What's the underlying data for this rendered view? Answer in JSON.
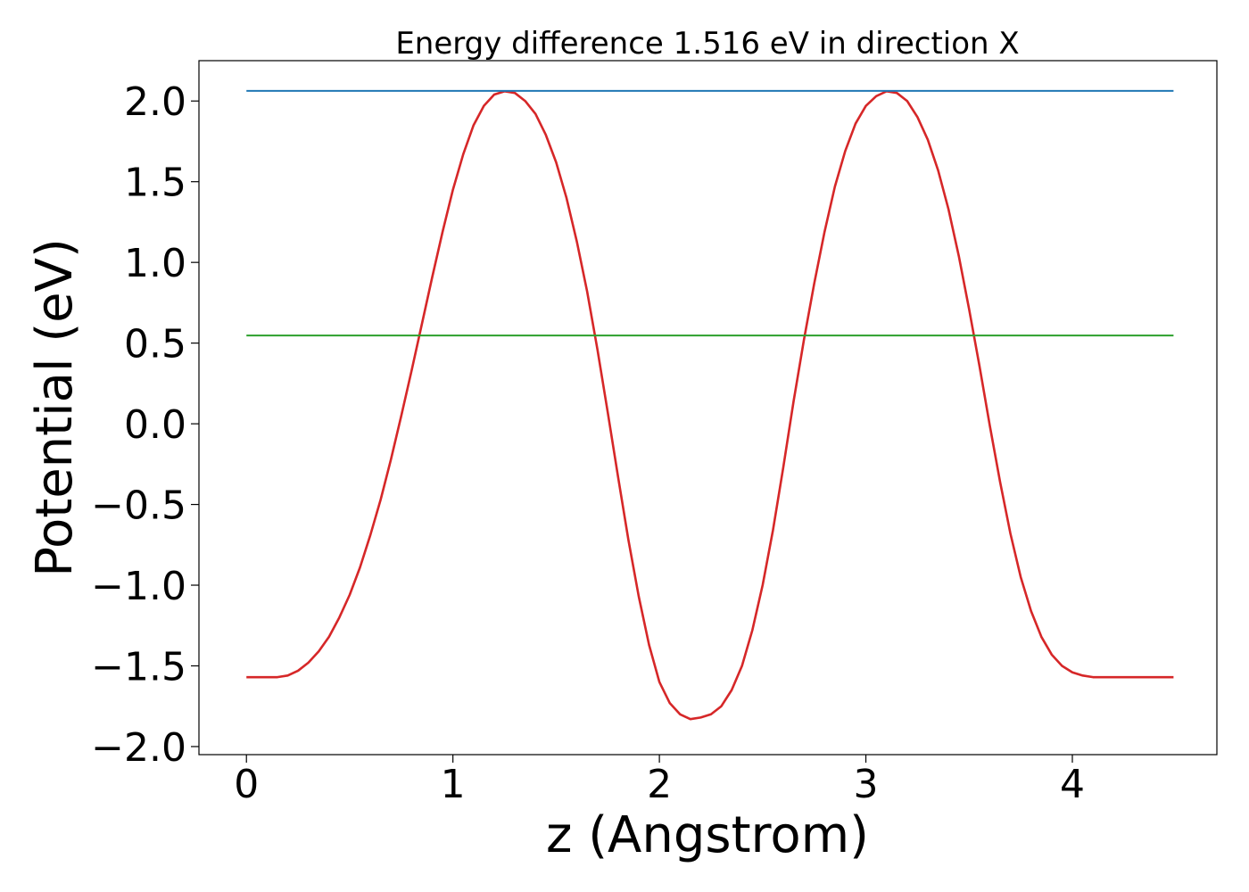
{
  "chart_data": {
    "type": "line",
    "title": "Energy difference 1.516 eV in direction X",
    "xlabel": "z (Angstrom)",
    "ylabel": "Potential (eV)",
    "xlim": [
      -0.23,
      4.7
    ],
    "ylim": [
      -2.05,
      2.25
    ],
    "xticks": [
      0,
      1,
      2,
      3,
      4
    ],
    "xtick_labels": [
      "0",
      "1",
      "2",
      "3",
      "4"
    ],
    "yticks": [
      -2.0,
      -1.5,
      -1.0,
      -0.5,
      0.0,
      0.5,
      1.0,
      1.5,
      2.0
    ],
    "ytick_labels": [
      "−2.0",
      "−1.5",
      "−1.0",
      "−0.5",
      "0.0",
      "0.5",
      "1.0",
      "1.5",
      "2.0"
    ],
    "grid": false,
    "series": [
      {
        "color": "#d62728",
        "x": [
          0.0,
          0.05,
          0.1,
          0.15,
          0.2,
          0.25,
          0.3,
          0.35,
          0.4,
          0.45,
          0.5,
          0.55,
          0.6,
          0.65,
          0.7,
          0.75,
          0.8,
          0.85,
          0.9,
          0.95,
          1.0,
          1.05,
          1.1,
          1.15,
          1.2,
          1.25,
          1.3,
          1.35,
          1.4,
          1.45,
          1.5,
          1.55,
          1.6,
          1.65,
          1.7,
          1.75,
          1.8,
          1.85,
          1.9,
          1.95,
          2.0,
          2.05,
          2.1,
          2.15,
          2.2,
          2.25,
          2.3,
          2.35,
          2.4,
          2.45,
          2.5,
          2.55,
          2.6,
          2.65,
          2.7,
          2.75,
          2.8,
          2.85,
          2.9,
          2.95,
          3.0,
          3.05,
          3.1,
          3.15,
          3.2,
          3.25,
          3.3,
          3.35,
          3.4,
          3.45,
          3.5,
          3.55,
          3.6,
          3.65,
          3.7,
          3.75,
          3.8,
          3.85,
          3.9,
          3.95,
          4.0,
          4.05,
          4.1,
          4.15,
          4.2,
          4.25,
          4.3,
          4.35,
          4.4,
          4.45,
          4.49
        ],
        "y": [
          -1.57,
          -1.57,
          -1.57,
          -1.57,
          -1.56,
          -1.53,
          -1.48,
          -1.41,
          -1.32,
          -1.2,
          -1.06,
          -0.89,
          -0.69,
          -0.47,
          -0.22,
          0.05,
          0.33,
          0.62,
          0.91,
          1.19,
          1.45,
          1.67,
          1.85,
          1.97,
          2.04,
          2.06,
          2.05,
          2.0,
          1.92,
          1.79,
          1.62,
          1.4,
          1.13,
          0.82,
          0.46,
          0.07,
          -0.33,
          -0.72,
          -1.07,
          -1.37,
          -1.6,
          -1.73,
          -1.8,
          -1.83,
          -1.82,
          -1.8,
          -1.75,
          -1.65,
          -1.5,
          -1.28,
          -1.0,
          -0.66,
          -0.27,
          0.14,
          0.52,
          0.87,
          1.19,
          1.47,
          1.69,
          1.86,
          1.97,
          2.03,
          2.06,
          2.05,
          2.0,
          1.9,
          1.76,
          1.57,
          1.33,
          1.04,
          0.71,
          0.36,
          -0.01,
          -0.36,
          -0.68,
          -0.95,
          -1.16,
          -1.32,
          -1.43,
          -1.5,
          -1.54,
          -1.56,
          -1.57,
          -1.57,
          -1.57,
          -1.57,
          -1.57,
          -1.57,
          -1.57,
          -1.57,
          -1.57
        ]
      },
      {
        "color": "#1f77b4",
        "x": [
          0.0,
          4.49
        ],
        "y": [
          2.063,
          2.063
        ]
      },
      {
        "color": "#2ca02c",
        "x": [
          0.0,
          4.49
        ],
        "y": [
          0.547,
          0.547
        ]
      }
    ]
  }
}
